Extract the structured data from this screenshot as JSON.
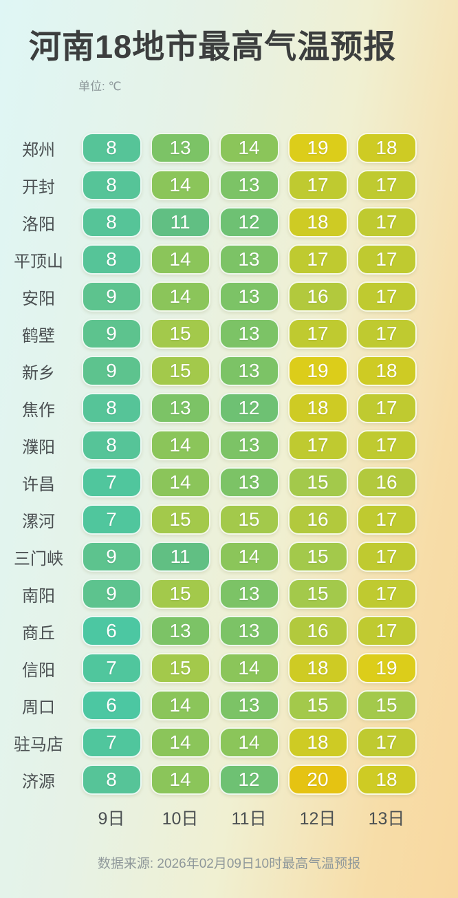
{
  "page": {
    "title": "河南18地市最高气温预报",
    "unit_label": "单位: ℃",
    "source_note": "数据来源: 2026年02月09日10时最高气温预报"
  },
  "colors": {
    "title_text": "#3c3e3e",
    "subtitle_text": "#8b9598",
    "row_label_text": "#4b5052",
    "date_label_text": "#4b5052",
    "cell_text": "#ffffff",
    "cell_border": "rgba(255,255,255,0.88)",
    "bg_top_left": "#dff6f5",
    "bg_bottom_left": "#e6f2e6",
    "bg_center": "#f0f0d2",
    "bg_right": "#f8d8a0",
    "temp_color_map": {
      "6": "#4cc7a2",
      "7": "#50c69d",
      "8": "#56c498",
      "9": "#5dc38e",
      "11": "#61bf83",
      "12": "#6ec173",
      "13": "#7cc366",
      "14": "#8bc55a",
      "15": "#a3c94b",
      "16": "#b2c93d",
      "17": "#bfca30",
      "18": "#cecb24",
      "19": "#dccd1a",
      "20": "#e5c312"
    }
  },
  "chart_data": {
    "type": "heatmap",
    "title": "河南18地市最高气温预报",
    "unit": "℃",
    "categories": [
      "9日",
      "10日",
      "11日",
      "12日",
      "13日"
    ],
    "value_range": [
      6,
      20
    ],
    "series": [
      {
        "name": "郑州",
        "values": [
          8,
          13,
          14,
          19,
          18
        ]
      },
      {
        "name": "开封",
        "values": [
          8,
          14,
          13,
          17,
          17
        ]
      },
      {
        "name": "洛阳",
        "values": [
          8,
          11,
          12,
          18,
          17
        ]
      },
      {
        "name": "平顶山",
        "values": [
          8,
          14,
          13,
          17,
          17
        ]
      },
      {
        "name": "安阳",
        "values": [
          9,
          14,
          13,
          16,
          17
        ]
      },
      {
        "name": "鹤壁",
        "values": [
          9,
          15,
          13,
          17,
          17
        ]
      },
      {
        "name": "新乡",
        "values": [
          9,
          15,
          13,
          19,
          18
        ]
      },
      {
        "name": "焦作",
        "values": [
          8,
          13,
          12,
          18,
          17
        ]
      },
      {
        "name": "濮阳",
        "values": [
          8,
          14,
          13,
          17,
          17
        ]
      },
      {
        "name": "许昌",
        "values": [
          7,
          14,
          13,
          15,
          16
        ]
      },
      {
        "name": "漯河",
        "values": [
          7,
          15,
          15,
          16,
          17
        ]
      },
      {
        "name": "三门峡",
        "values": [
          9,
          11,
          14,
          15,
          17
        ]
      },
      {
        "name": "南阳",
        "values": [
          9,
          15,
          13,
          15,
          17
        ]
      },
      {
        "name": "商丘",
        "values": [
          6,
          13,
          13,
          16,
          17
        ]
      },
      {
        "name": "信阳",
        "values": [
          7,
          15,
          14,
          18,
          19
        ]
      },
      {
        "name": "周口",
        "values": [
          6,
          14,
          13,
          15,
          15
        ]
      },
      {
        "name": "驻马店",
        "values": [
          7,
          14,
          14,
          18,
          17
        ]
      },
      {
        "name": "济源",
        "values": [
          8,
          14,
          12,
          20,
          18
        ]
      }
    ]
  }
}
